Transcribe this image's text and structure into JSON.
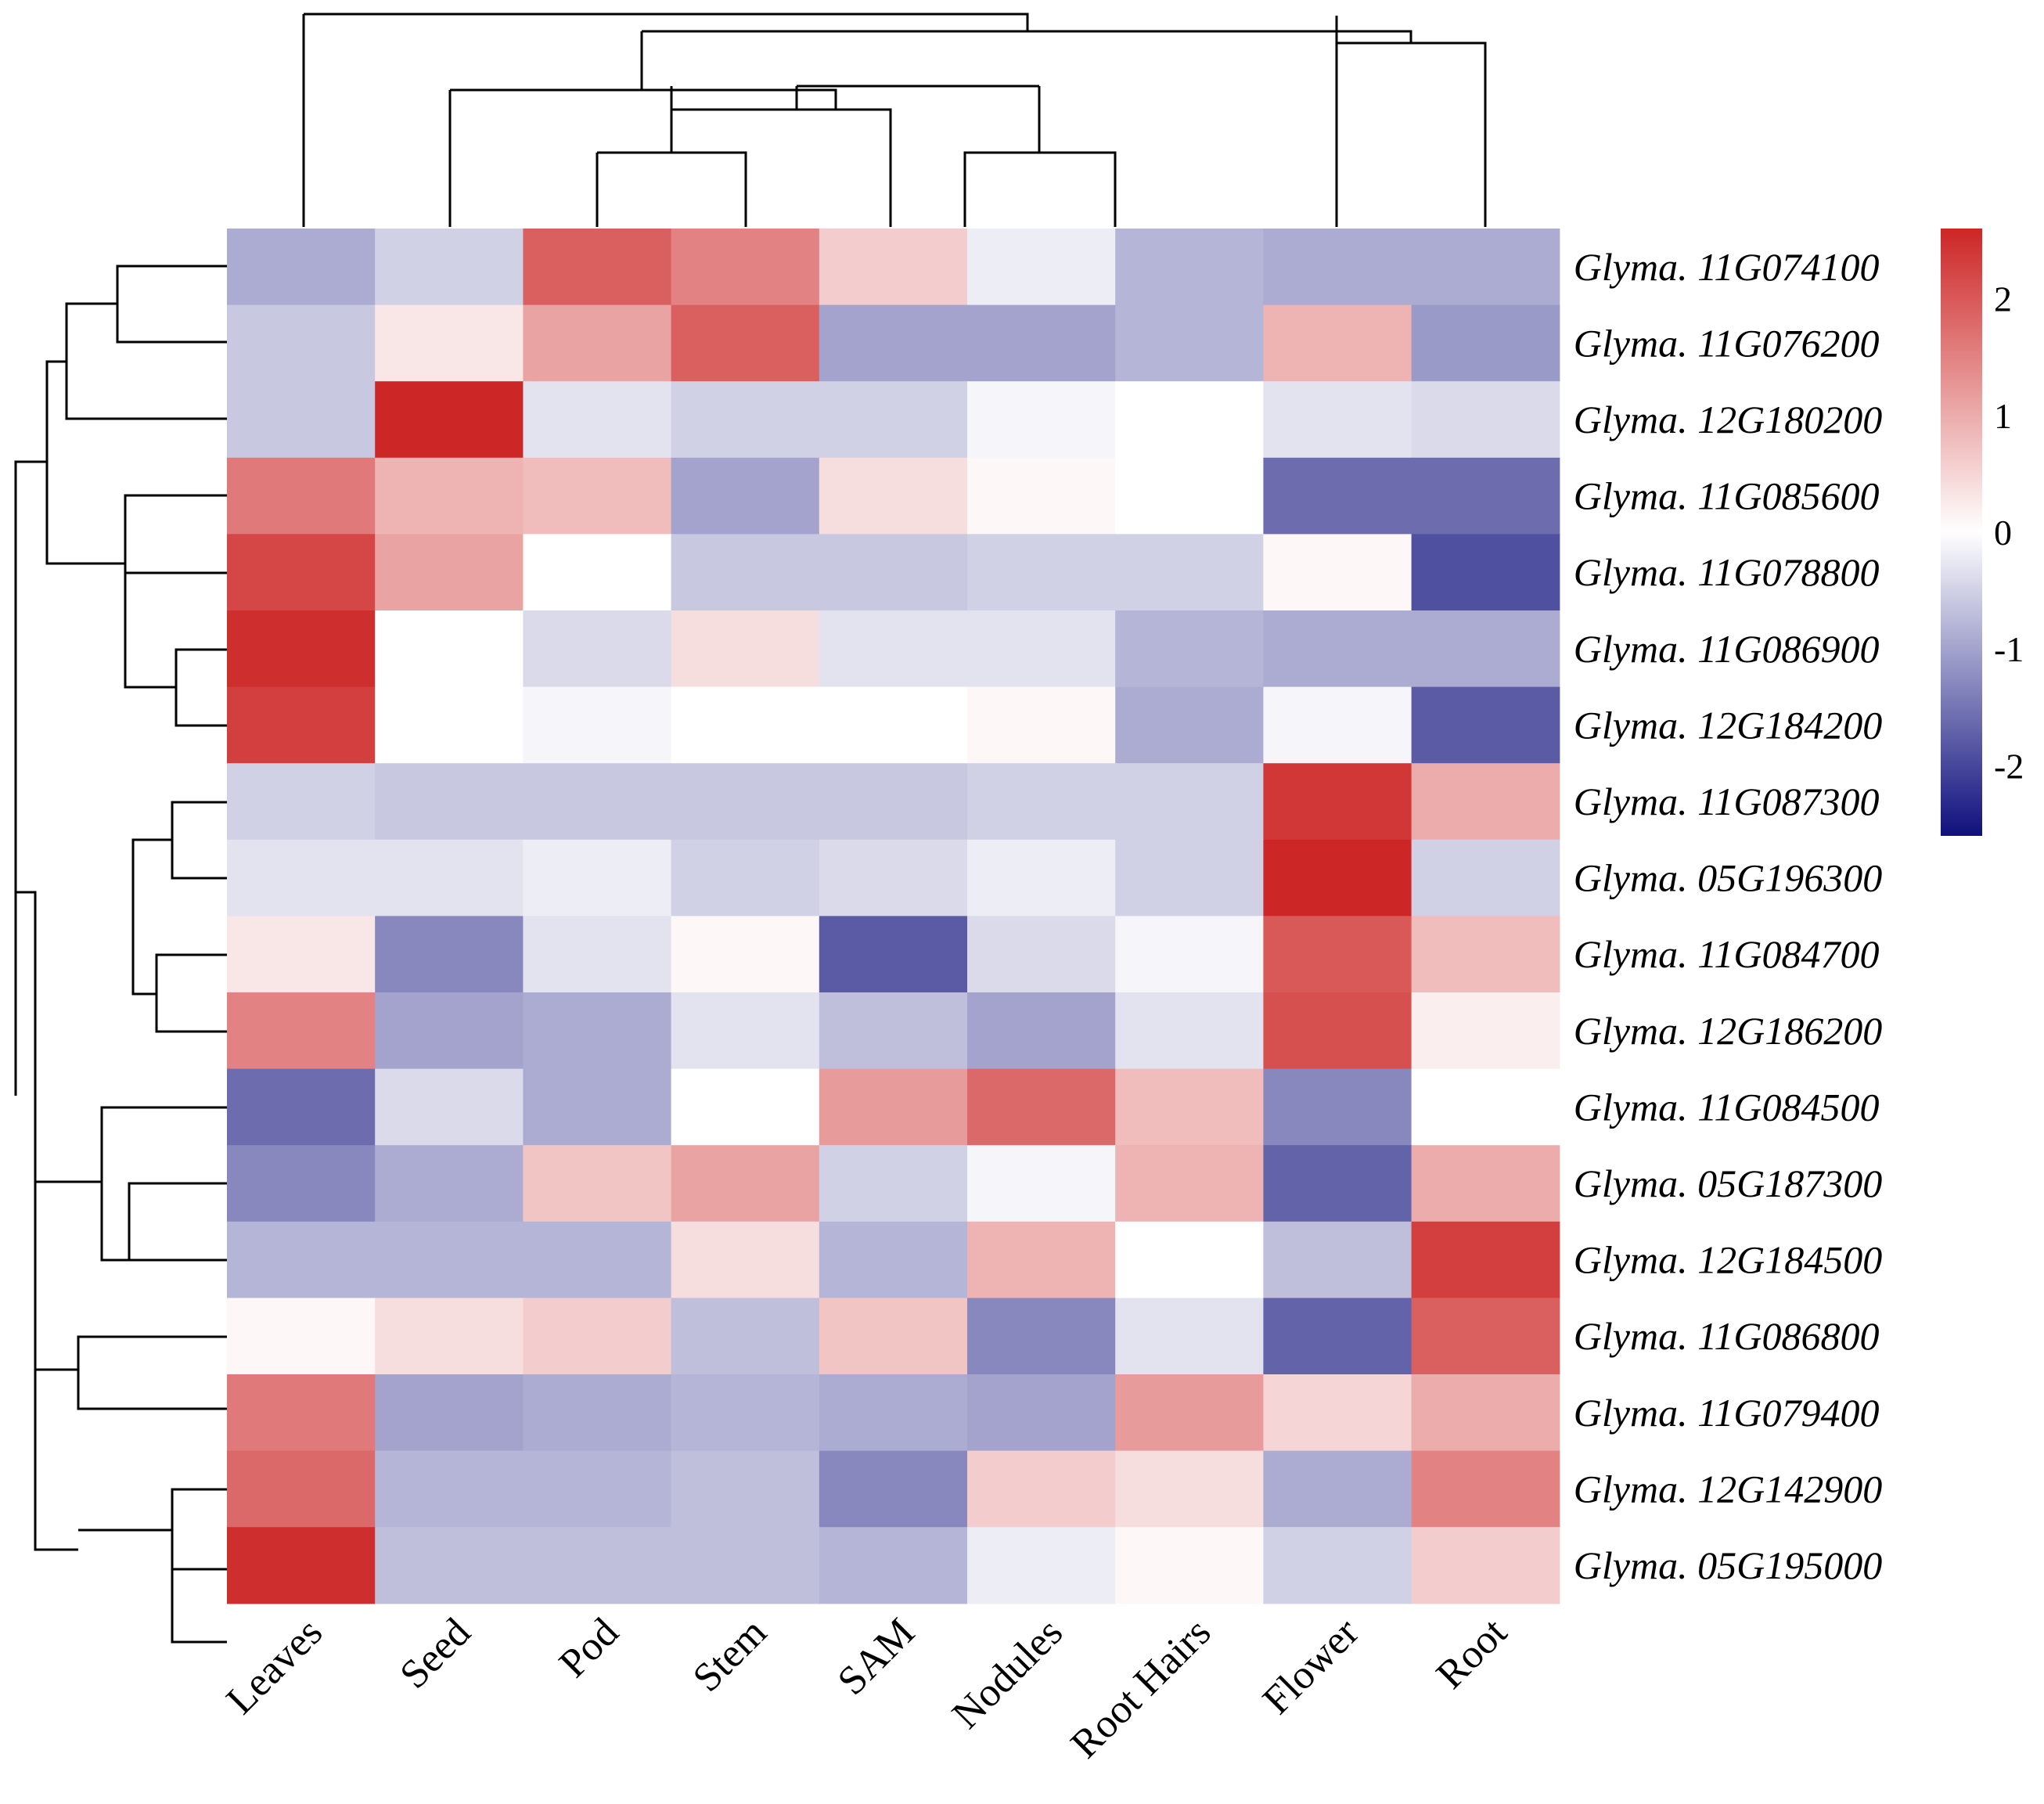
{
  "chart_data": {
    "type": "heatmap",
    "title": "",
    "columns": [
      "Leaves",
      "Seed",
      "Pod",
      "Stem",
      "SAM",
      "Nodules",
      "Root Hairs",
      "Flower",
      "Root"
    ],
    "rows": [
      {
        "gene": "Glyma. 11G074100",
        "values": [
          -0.9,
          -0.5,
          1.9,
          1.5,
          0.6,
          -0.2,
          -0.8,
          -0.9,
          -0.9
        ]
      },
      {
        "gene": "Glyma. 11G076200",
        "values": [
          -0.6,
          0.3,
          1.1,
          1.9,
          -1.0,
          -1.0,
          -0.8,
          0.9,
          -1.1
        ]
      },
      {
        "gene": "Glyma. 12G180200",
        "values": [
          -0.6,
          2.6,
          -0.3,
          -0.5,
          -0.5,
          -0.1,
          0.0,
          -0.3,
          -0.4
        ]
      },
      {
        "gene": "Glyma. 11G085600",
        "values": [
          1.6,
          0.9,
          0.8,
          -1.0,
          0.4,
          0.1,
          0.0,
          -1.6,
          -1.6
        ]
      },
      {
        "gene": "Glyma. 11G078800",
        "values": [
          2.2,
          1.1,
          0.0,
          -0.6,
          -0.6,
          -0.5,
          -0.5,
          0.1,
          -1.9
        ]
      },
      {
        "gene": "Glyma. 11G086900",
        "values": [
          2.5,
          0.0,
          -0.4,
          0.4,
          -0.3,
          -0.3,
          -0.8,
          -0.9,
          -0.9
        ]
      },
      {
        "gene": "Glyma. 12G184200",
        "values": [
          2.3,
          0.0,
          -0.1,
          0.0,
          0.0,
          0.1,
          -0.9,
          -0.1,
          -1.8
        ]
      },
      {
        "gene": "Glyma. 11G087300",
        "values": [
          -0.5,
          -0.6,
          -0.6,
          -0.6,
          -0.6,
          -0.5,
          -0.5,
          2.4,
          1.0
        ]
      },
      {
        "gene": "Glyma. 05G196300",
        "values": [
          -0.3,
          -0.3,
          -0.2,
          -0.5,
          -0.4,
          -0.2,
          -0.5,
          2.6,
          -0.5
        ]
      },
      {
        "gene": "Glyma. 11G084700",
        "values": [
          0.3,
          -1.3,
          -0.3,
          0.1,
          -1.8,
          -0.4,
          -0.1,
          2.0,
          0.8
        ]
      },
      {
        "gene": "Glyma. 12G186200",
        "values": [
          1.5,
          -1.0,
          -0.9,
          -0.3,
          -0.7,
          -1.0,
          -0.3,
          2.1,
          0.2
        ]
      },
      {
        "gene": "Glyma. 11G084500",
        "values": [
          -1.6,
          -0.4,
          -0.9,
          0.0,
          1.2,
          1.8,
          0.8,
          -1.3,
          0.0
        ]
      },
      {
        "gene": "Glyma. 05G187300",
        "values": [
          -1.3,
          -0.9,
          0.7,
          1.1,
          -0.5,
          -0.1,
          0.9,
          -1.7,
          1.0
        ]
      },
      {
        "gene": "Glyma. 12G184500",
        "values": [
          -0.8,
          -0.8,
          -0.8,
          0.4,
          -0.8,
          0.9,
          0.0,
          -0.7,
          2.3
        ]
      },
      {
        "gene": "Glyma. 11G086800",
        "values": [
          0.1,
          0.4,
          0.6,
          -0.7,
          0.7,
          -1.3,
          -0.3,
          -1.7,
          1.9
        ]
      },
      {
        "gene": "Glyma. 11G079400",
        "values": [
          1.6,
          -1.0,
          -0.9,
          -0.8,
          -0.9,
          -1.0,
          1.2,
          0.5,
          1.0
        ]
      },
      {
        "gene": "Glyma. 12G142900",
        "values": [
          1.8,
          -0.8,
          -0.8,
          -0.7,
          -1.3,
          0.6,
          0.4,
          -0.9,
          1.5
        ]
      },
      {
        "gene": "Glyma. 05G195000",
        "values": [
          2.5,
          -0.7,
          -0.7,
          -0.7,
          -0.8,
          -0.2,
          0.1,
          -0.5,
          0.6
        ]
      }
    ],
    "colorbar": {
      "min": -2.6,
      "max": 2.6,
      "ticks": [
        {
          "value": 2,
          "label": "2"
        },
        {
          "value": 1,
          "label": "1"
        },
        {
          "value": 0,
          "label": "0"
        },
        {
          "value": -1,
          "label": "-1"
        },
        {
          "value": -2,
          "label": "-2"
        }
      ],
      "colors": {
        "low": "#10107d",
        "mid": "#ffffff",
        "high": "#cd2626"
      }
    },
    "xlabel": "",
    "ylabel": "",
    "legend_position": "top-right"
  }
}
